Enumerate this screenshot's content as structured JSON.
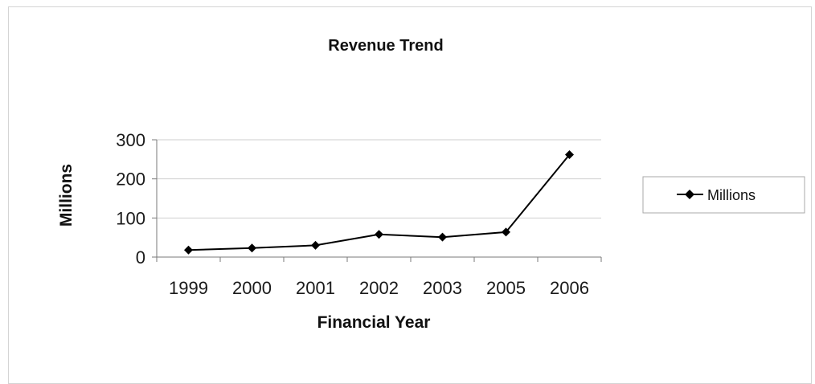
{
  "chart_data": {
    "type": "line",
    "title": "Revenue Trend",
    "xlabel": "Financial Year",
    "ylabel": "Millions",
    "categories": [
      "1999",
      "2000",
      "2001",
      "2002",
      "2003",
      "2005",
      "2006"
    ],
    "series": [
      {
        "name": "Millions",
        "values": [
          18,
          23,
          30,
          58,
          51,
          64,
          262
        ],
        "color": "#000000",
        "marker": "diamond"
      }
    ],
    "ylim": [
      0,
      300
    ],
    "yticks": [
      "0",
      "100",
      "200",
      "300"
    ],
    "grid": true,
    "legend": "right"
  }
}
